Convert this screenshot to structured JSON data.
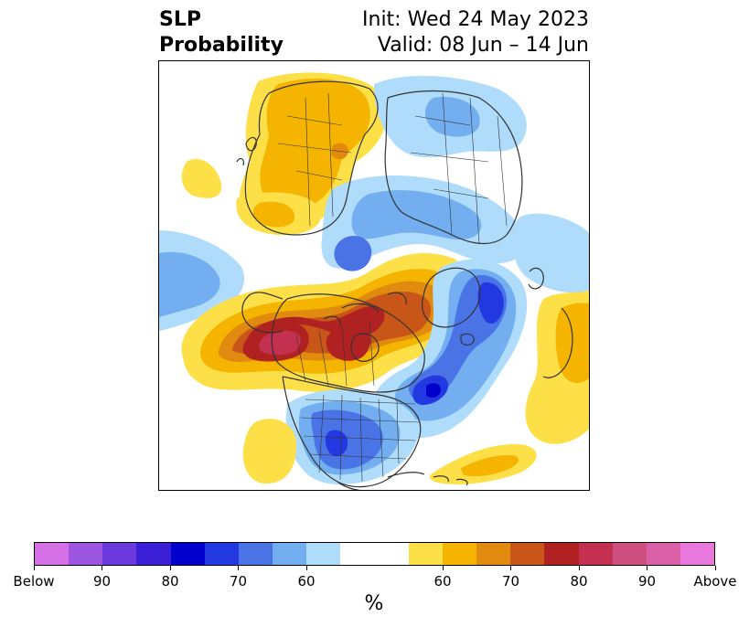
{
  "title": {
    "left_lines": [
      "SLP",
      "Probability"
    ],
    "right_lines": [
      "Init: Wed 24 May 2023",
      "Valid: 08 Jun – 14 Jun"
    ]
  },
  "colorbar": {
    "unit": "%",
    "colors": [
      "#d670e6",
      "#9b55e0",
      "#6b3add",
      "#3b1fd6",
      "#0000cc",
      "#2238e0",
      "#4a74e6",
      "#73aff0",
      "#aedcfa",
      "#ffffff",
      "#ffffff",
      "#fde048",
      "#f4b400",
      "#e08a10",
      "#c85618",
      "#b02222",
      "#c43050",
      "#ce5080",
      "#da60a8",
      "#e878dc"
    ],
    "labels": [
      "Below",
      "90",
      "80",
      "70",
      "60",
      "60",
      "70",
      "80",
      "90",
      "Above"
    ]
  },
  "map": {
    "colors": {
      "yellow": "#fde048",
      "gold": "#f4b400",
      "orange": "#e08a10",
      "darkorange": "#c85618",
      "red": "#b02222",
      "crimson": "#c43050",
      "pink": "#ce5080",
      "lightblue": "#aedcfa",
      "skyblue": "#73aff0",
      "blue": "#4a74e6",
      "royal": "#2238e0",
      "navy": "#0000cc",
      "coast": "#333333"
    }
  }
}
